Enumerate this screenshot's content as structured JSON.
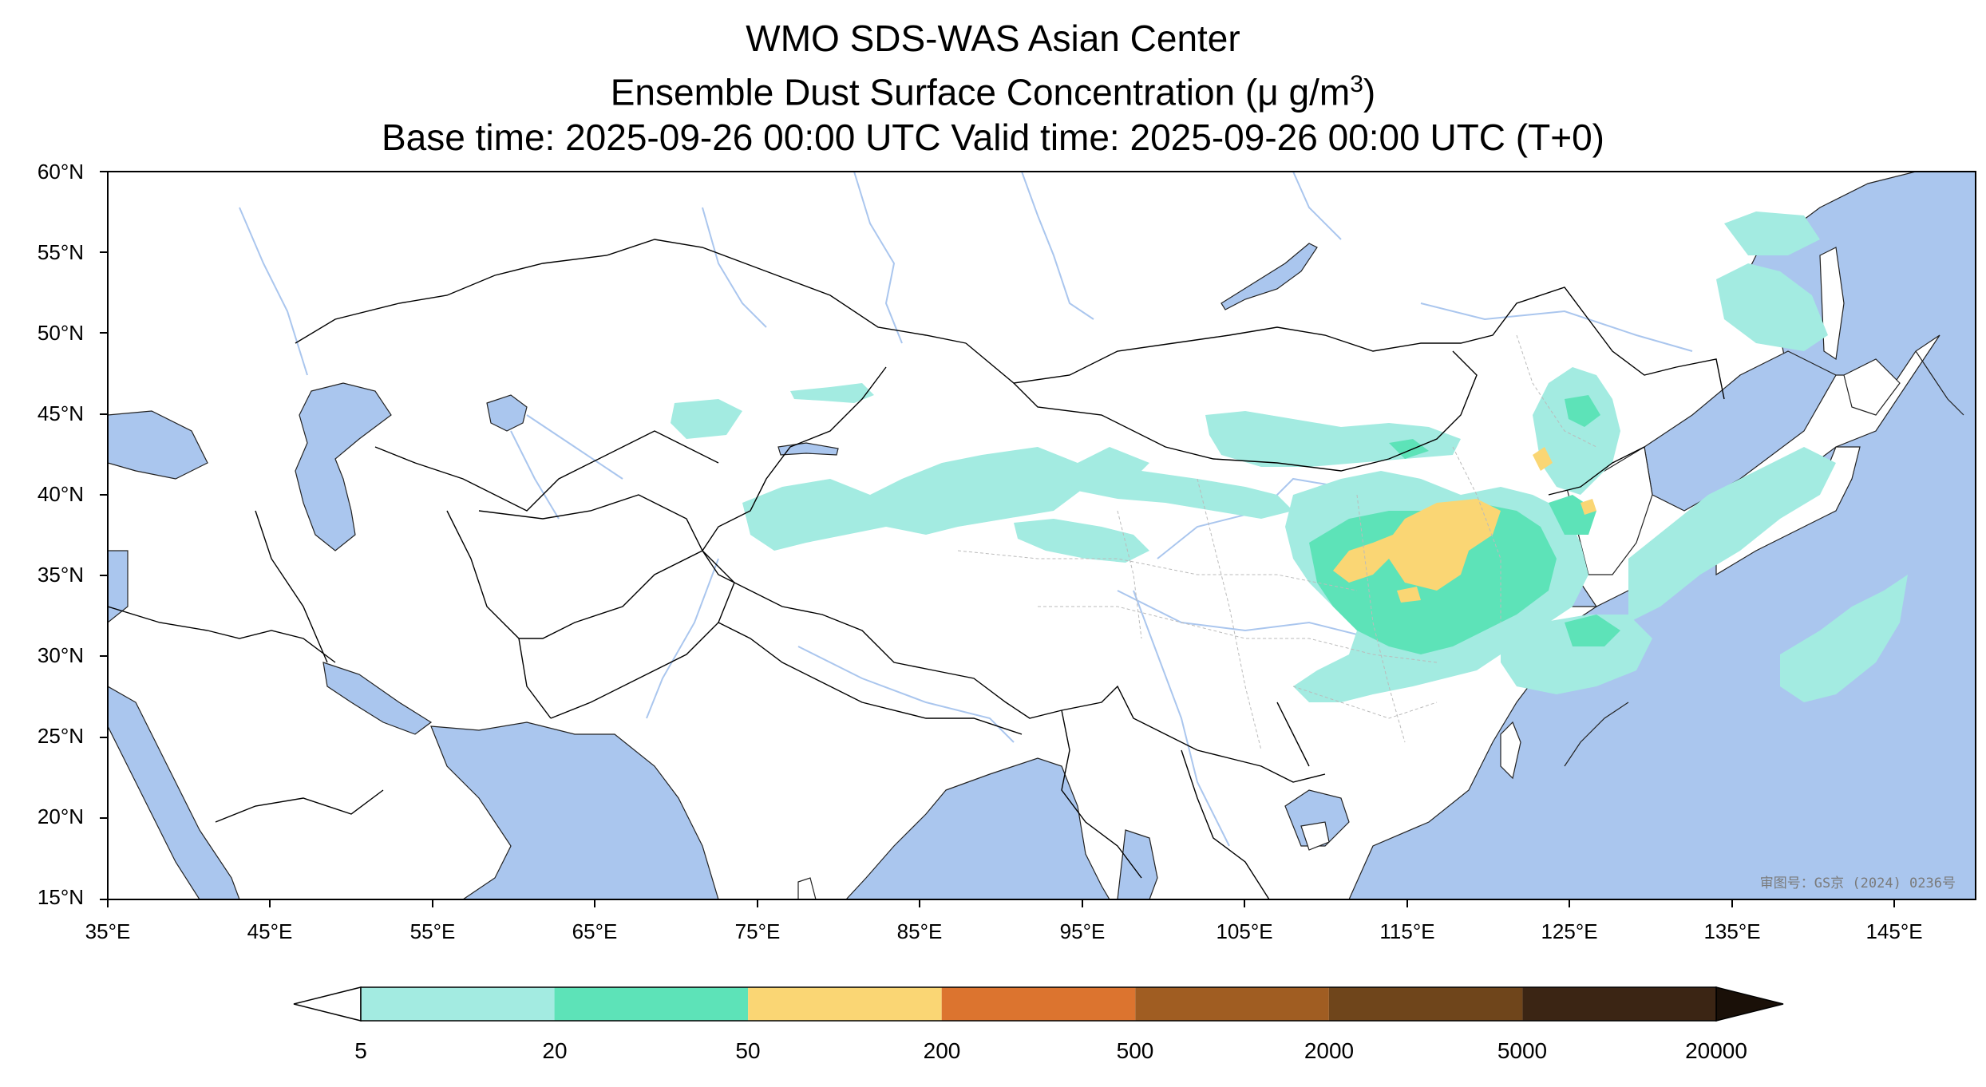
{
  "title": {
    "line1": "WMO SDS-WAS Asian Center",
    "line2_prefix": "Ensemble Dust Surface Concentration (",
    "line2_mu": "μ",
    "line2_unit": " g/m",
    "line2_exp": "3",
    "line2_suffix": ")",
    "line3": "Base time: 2025-09-26 00:00 UTC Valid time: 2025-09-26 00:00 UTC (T+0)"
  },
  "map": {
    "lat_ticks": [
      "60°N",
      "55°N",
      "50°N",
      "45°N",
      "40°N",
      "35°N",
      "30°N",
      "25°N",
      "20°N",
      "15°N"
    ],
    "lon_ticks": [
      "35°E",
      "45°E",
      "55°E",
      "65°E",
      "75°E",
      "85°E",
      "95°E",
      "105°E",
      "115°E",
      "125°E",
      "135°E",
      "145°E"
    ],
    "lat_range": [
      15,
      60
    ],
    "lon_range": [
      35,
      150
    ],
    "stamp": "审图号：GS京 (2024) 0236号",
    "colors": {
      "ocean": "#aac6ee",
      "land": "#ffffff",
      "border": "#000000",
      "river": "#aac6ee",
      "province": "#bbbbbb"
    }
  },
  "colorbar": {
    "levels": [
      "5",
      "20",
      "50",
      "200",
      "500",
      "2000",
      "5000",
      "20000"
    ],
    "colors": [
      "#a3ebe1",
      "#5de3b8",
      "#fad674",
      "#dc742f",
      "#a05d22",
      "#6f451b",
      "#3b2514"
    ],
    "under_color": "#ffffff",
    "over_color": "#1a1008"
  }
}
